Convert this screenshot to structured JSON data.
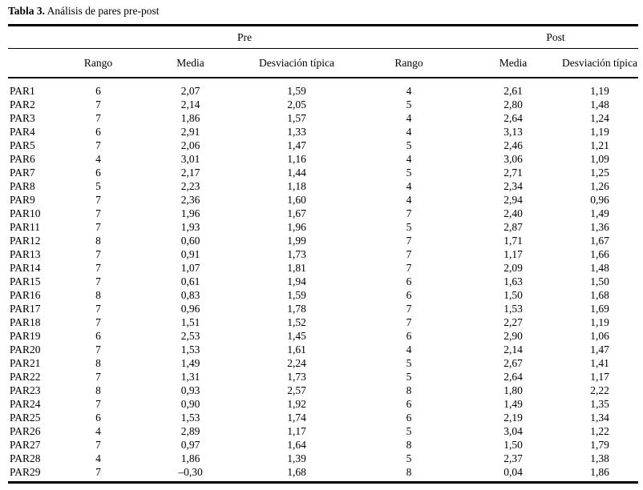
{
  "caption": {
    "label": "Tabla 3.",
    "text": " Análisis de pares pre-post"
  },
  "groups": [
    "Pre",
    "Post"
  ],
  "columns": [
    "Rango",
    "Media",
    "Desviación típica",
    "Rango",
    "Media",
    "Desviación típica"
  ],
  "rows": [
    {
      "name": "PAR1",
      "values": [
        "6",
        "2,07",
        "1,59",
        "4",
        "2,61",
        "1,19"
      ]
    },
    {
      "name": "PAR2",
      "values": [
        "7",
        "2,14",
        "2,05",
        "5",
        "2,80",
        "1,48"
      ]
    },
    {
      "name": "PAR3",
      "values": [
        "7",
        "1,86",
        "1,57",
        "4",
        "2,64",
        "1,24"
      ]
    },
    {
      "name": "PAR4",
      "values": [
        "6",
        "2,91",
        "1,33",
        "4",
        "3,13",
        "1,19"
      ]
    },
    {
      "name": "PAR5",
      "values": [
        "7",
        "2,06",
        "1,47",
        "5",
        "2,46",
        "1,21"
      ]
    },
    {
      "name": "PAR6",
      "values": [
        "4",
        "3,01",
        "1,16",
        "4",
        "3,06",
        "1,09"
      ]
    },
    {
      "name": "PAR7",
      "values": [
        "6",
        "2,17",
        "1,44",
        "5",
        "2,71",
        "1,25"
      ]
    },
    {
      "name": "PAR8",
      "values": [
        "5",
        "2,23",
        "1,18",
        "4",
        "2,34",
        "1,26"
      ]
    },
    {
      "name": "PAR9",
      "values": [
        "7",
        "2,36",
        "1,60",
        "4",
        "2,94",
        "0,96"
      ]
    },
    {
      "name": "PAR10",
      "values": [
        "7",
        "1,96",
        "1,67",
        "7",
        "2,40",
        "1,49"
      ]
    },
    {
      "name": "PAR11",
      "values": [
        "7",
        "1,93",
        "1,96",
        "5",
        "2,87",
        "1,36"
      ]
    },
    {
      "name": "PAR12",
      "values": [
        "8",
        "0,60",
        "1,99",
        "7",
        "1,71",
        "1,67"
      ]
    },
    {
      "name": "PAR13",
      "values": [
        "7",
        "0,91",
        "1,73",
        "7",
        "1,17",
        "1,66"
      ]
    },
    {
      "name": "PAR14",
      "values": [
        "7",
        "1,07",
        "1,81",
        "7",
        "2,09",
        "1,48"
      ]
    },
    {
      "name": "PAR15",
      "values": [
        "7",
        "0,61",
        "1,94",
        "6",
        "1,63",
        "1,50"
      ]
    },
    {
      "name": "PAR16",
      "values": [
        "8",
        "0,83",
        "1,59",
        "6",
        "1,50",
        "1,68"
      ]
    },
    {
      "name": "PAR17",
      "values": [
        "7",
        "0,96",
        "1,78",
        "7",
        "1,53",
        "1,69"
      ]
    },
    {
      "name": "PAR18",
      "values": [
        "7",
        "1,51",
        "1,52",
        "7",
        "2,27",
        "1,19"
      ]
    },
    {
      "name": "PAR19",
      "values": [
        "6",
        "2,53",
        "1,45",
        "6",
        "2,90",
        "1,06"
      ]
    },
    {
      "name": "PAR20",
      "values": [
        "7",
        "1,53",
        "1,61",
        "4",
        "2,14",
        "1,47"
      ]
    },
    {
      "name": "PAR21",
      "values": [
        "8",
        "1,49",
        "2,24",
        "5",
        "2,67",
        "1,41"
      ]
    },
    {
      "name": "PAR22",
      "values": [
        "7",
        "1,31",
        "1,73",
        "5",
        "2,64",
        "1,17"
      ]
    },
    {
      "name": "PAR23",
      "values": [
        "8",
        "0,93",
        "2,57",
        "8",
        "1,80",
        "2,22"
      ]
    },
    {
      "name": "PAR24",
      "values": [
        "7",
        "0,90",
        "1,92",
        "6",
        "1,49",
        "1,35"
      ]
    },
    {
      "name": "PAR25",
      "values": [
        "6",
        "1,53",
        "1,74",
        "6",
        "2,19",
        "1,34"
      ]
    },
    {
      "name": "PAR26",
      "values": [
        "4",
        "2,89",
        "1,17",
        "5",
        "3,04",
        "1,22"
      ]
    },
    {
      "name": "PAR27",
      "values": [
        "7",
        "0,97",
        "1,64",
        "8",
        "1,50",
        "1,79"
      ]
    },
    {
      "name": "PAR28",
      "values": [
        "4",
        "1,86",
        "1,39",
        "5",
        "2,37",
        "1,38"
      ]
    },
    {
      "name": "PAR29",
      "values": [
        "7",
        "–0,30",
        "1,68",
        "8",
        "0,04",
        "1,86"
      ]
    }
  ]
}
